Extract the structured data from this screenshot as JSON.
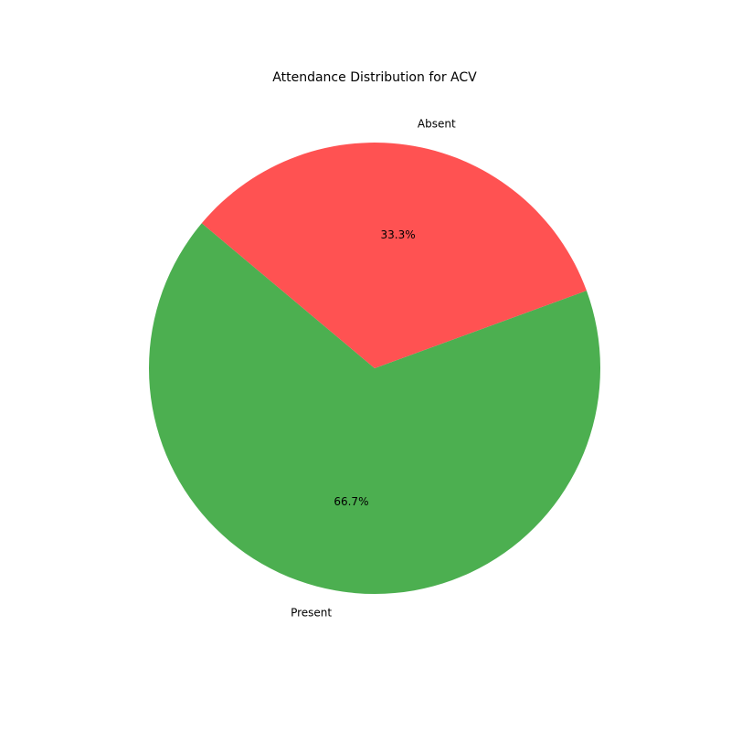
{
  "chart_data": {
    "type": "pie",
    "title": "Attendance Distribution for ACV",
    "categories": [
      "Present",
      "Absent"
    ],
    "values": [
      66.7,
      33.3
    ],
    "value_labels": [
      "66.7%",
      "33.3%"
    ],
    "colors": [
      "#4caf50",
      "#ff5252"
    ],
    "legend": "none"
  }
}
